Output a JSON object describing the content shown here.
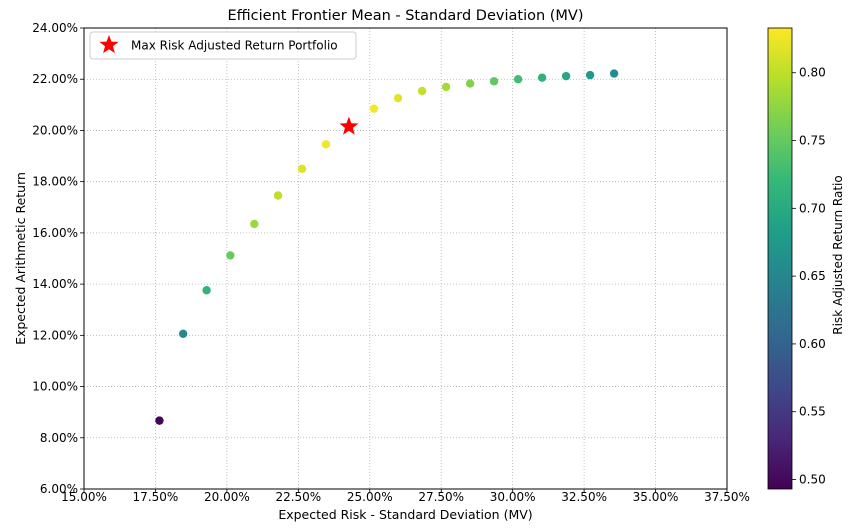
{
  "chart_data": {
    "type": "scatter",
    "title": "Efficient Frontier Mean - Standard Deviation (MV)",
    "xlabel": "Expected Risk - Standard Deviation (MV)",
    "ylabel": "Expected Arithmetic Return",
    "xlim": [
      0.15,
      0.375
    ],
    "ylim": [
      0.06,
      0.24
    ],
    "x_ticks": [
      0.15,
      0.175,
      0.2,
      0.225,
      0.25,
      0.275,
      0.3,
      0.325,
      0.35,
      0.375
    ],
    "x_tick_labels": [
      "15.00%",
      "17.50%",
      "20.00%",
      "22.50%",
      "25.00%",
      "27.50%",
      "30.00%",
      "32.50%",
      "35.00%",
      "37.50%"
    ],
    "y_ticks": [
      0.06,
      0.08,
      0.1,
      0.12,
      0.14,
      0.16,
      0.18,
      0.2,
      0.22,
      0.24
    ],
    "y_tick_labels": [
      "6.00%",
      "8.00%",
      "10.00%",
      "12.00%",
      "14.00%",
      "16.00%",
      "18.00%",
      "20.00%",
      "22.00%",
      "24.00%"
    ],
    "grid": true,
    "grid_style": "dotted",
    "colormap": "viridis",
    "colorbar": {
      "label": "Risk Adjusted Return Ratio",
      "range": [
        0.493,
        0.833
      ],
      "ticks": [
        0.5,
        0.55,
        0.6,
        0.65,
        0.7,
        0.75,
        0.8
      ],
      "tick_labels": [
        "0.50",
        "0.55",
        "0.60",
        "0.65",
        "0.70",
        "0.75",
        "0.80"
      ]
    },
    "points": [
      {
        "x": 0.1764,
        "y": 0.0867,
        "c": 0.495
      },
      {
        "x": 0.1847,
        "y": 0.1206,
        "c": 0.655
      },
      {
        "x": 0.1929,
        "y": 0.1376,
        "c": 0.714
      },
      {
        "x": 0.2012,
        "y": 0.1512,
        "c": 0.752
      },
      {
        "x": 0.2096,
        "y": 0.1635,
        "c": 0.781
      },
      {
        "x": 0.2179,
        "y": 0.1746,
        "c": 0.801
      },
      {
        "x": 0.2263,
        "y": 0.185,
        "c": 0.817
      },
      {
        "x": 0.2347,
        "y": 0.1946,
        "c": 0.827
      },
      {
        "x": 0.2515,
        "y": 0.2085,
        "c": 0.83
      },
      {
        "x": 0.2599,
        "y": 0.2126,
        "c": 0.818
      },
      {
        "x": 0.2683,
        "y": 0.2154,
        "c": 0.803
      },
      {
        "x": 0.2767,
        "y": 0.217,
        "c": 0.786
      },
      {
        "x": 0.2851,
        "y": 0.2183,
        "c": 0.767
      },
      {
        "x": 0.2935,
        "y": 0.2192,
        "c": 0.748
      },
      {
        "x": 0.3019,
        "y": 0.22,
        "c": 0.729
      },
      {
        "x": 0.3103,
        "y": 0.2206,
        "c": 0.711
      },
      {
        "x": 0.3187,
        "y": 0.2212,
        "c": 0.694
      },
      {
        "x": 0.3271,
        "y": 0.2216,
        "c": 0.678
      },
      {
        "x": 0.3355,
        "y": 0.2222,
        "c": 0.662
      }
    ],
    "highlight": {
      "label": "Max Risk Adjusted Return Portfolio",
      "x": 0.2427,
      "y": 0.2015,
      "color": "#ff0000",
      "marker": "star"
    },
    "legend_position": "top-left"
  }
}
